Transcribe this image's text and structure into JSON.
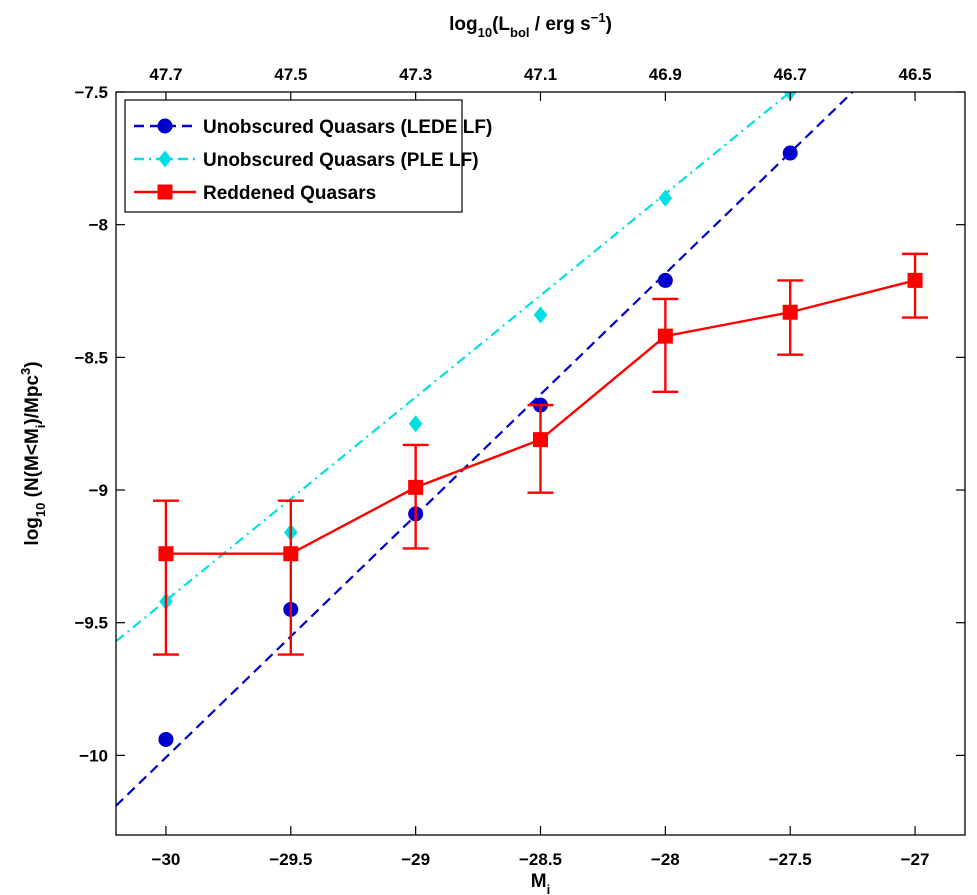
{
  "chart_data": {
    "type": "line",
    "title": "",
    "xlabel": "M",
    "xlabel_sub": "i",
    "ylabel_parts": [
      "log",
      "10",
      " (N(M<M",
      "i",
      ")/Mpc",
      "3",
      ")"
    ],
    "top_xlabel_parts": [
      "log",
      "10",
      "(L",
      "bol",
      " / erg s",
      "−1",
      ")"
    ],
    "xlim": [
      -30.2,
      -26.8
    ],
    "ylim": [
      -10.3,
      -7.5
    ],
    "x_ticks": [
      -30,
      -29.5,
      -29,
      -28.5,
      -28,
      -27.5,
      -27
    ],
    "x_tick_labels": [
      "−30",
      "−29.5",
      "−29",
      "−28.5",
      "−28",
      "−27.5",
      "−27"
    ],
    "y_ticks": [
      -10,
      -9.5,
      -9,
      -8.5,
      -8,
      -7.5
    ],
    "y_tick_labels": [
      "−10",
      "−9.5",
      "−9",
      "−8.5",
      "−8",
      "−7.5"
    ],
    "top_x_ticks": [
      -30,
      -29.5,
      -29,
      -28.5,
      -28,
      -27.5,
      -27
    ],
    "top_x_tick_labels": [
      "47.7",
      "47.5",
      "47.3",
      "47.1",
      "46.9",
      "46.7",
      "46.5"
    ],
    "grid": false,
    "legend_position": "top-left",
    "series": [
      {
        "name": "Unobscured Quasars (LEDE LF)",
        "color": "#0000cc",
        "line_style": "dashed",
        "marker": "circle",
        "x": [
          -30,
          -29.5,
          -29,
          -28.5,
          -28,
          -27.5
        ],
        "y": [
          -9.94,
          -9.45,
          -9.09,
          -8.68,
          -8.21,
          -7.73
        ],
        "fit_line": {
          "x": [
            -30.2,
            -27.25
          ],
          "y": [
            -10.19,
            -7.5
          ]
        }
      },
      {
        "name": "Unobscured Quasars (PLE LF)",
        "color": "#00e0e0",
        "line_style": "dash-dot",
        "marker": "diamond",
        "x": [
          -30,
          -29.5,
          -29,
          -28.5,
          -28,
          -27.5
        ],
        "y": [
          -9.42,
          -9.16,
          -8.75,
          -8.34,
          -7.9,
          -7.5
        ],
        "fit_line": {
          "x": [
            -30.2,
            -27.5
          ],
          "y": [
            -9.57,
            -7.5
          ]
        }
      },
      {
        "name": "Reddened Quasars",
        "color": "#ff0000",
        "line_style": "solid",
        "marker": "square",
        "x": [
          -30,
          -29.5,
          -29,
          -28.5,
          -28,
          -27.5,
          -27
        ],
        "y": [
          -9.24,
          -9.24,
          -8.99,
          -8.81,
          -8.42,
          -8.33,
          -8.21
        ],
        "err_low": [
          -9.62,
          -9.62,
          -9.22,
          -9.01,
          -8.63,
          -8.49,
          -8.35
        ],
        "err_high": [
          -9.04,
          -9.04,
          -8.83,
          -8.68,
          -8.28,
          -8.21,
          -8.11
        ]
      }
    ]
  }
}
